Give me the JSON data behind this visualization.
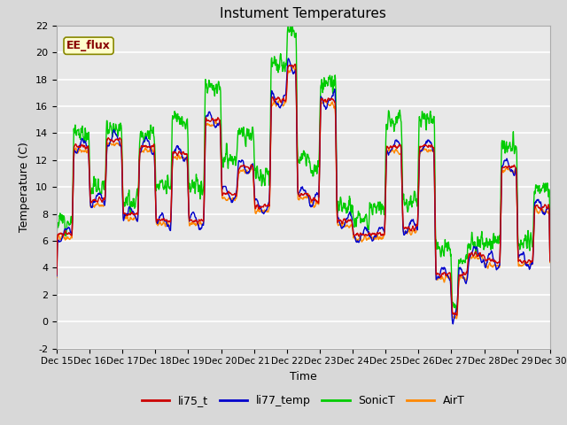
{
  "title": "Instument Temperatures",
  "xlabel": "Time",
  "ylabel": "Temperature (C)",
  "ylim": [
    -2,
    22
  ],
  "xlim": [
    15,
    30
  ],
  "xtick_positions": [
    15,
    16,
    17,
    18,
    19,
    20,
    21,
    22,
    23,
    24,
    25,
    26,
    27,
    28,
    29,
    30
  ],
  "xtick_labels": [
    "Dec 15",
    "Dec 16",
    "Dec 17",
    "Dec 18",
    "Dec 19",
    "Dec 20",
    "Dec 21",
    "Dec 22",
    "Dec 23",
    "Dec 24",
    "Dec 25",
    "Dec 26",
    "Dec 27",
    "Dec 28",
    "Dec 29",
    "Dec 30"
  ],
  "ytick_positions": [
    -2,
    0,
    2,
    4,
    6,
    8,
    10,
    12,
    14,
    16,
    18,
    20,
    22
  ],
  "line_colors": {
    "li75_t": "#cc0000",
    "li77_temp": "#0000cc",
    "SonicT": "#00cc00",
    "AirT": "#ff8800"
  },
  "line_width": 1.0,
  "bg_color": "#e8e8e8",
  "grid_color": "#ffffff",
  "annotation_text": "EE_flux",
  "annotation_bg": "#ffffcc",
  "annotation_border": "#888800",
  "annotation_text_color": "#880000",
  "n_points": 1440
}
